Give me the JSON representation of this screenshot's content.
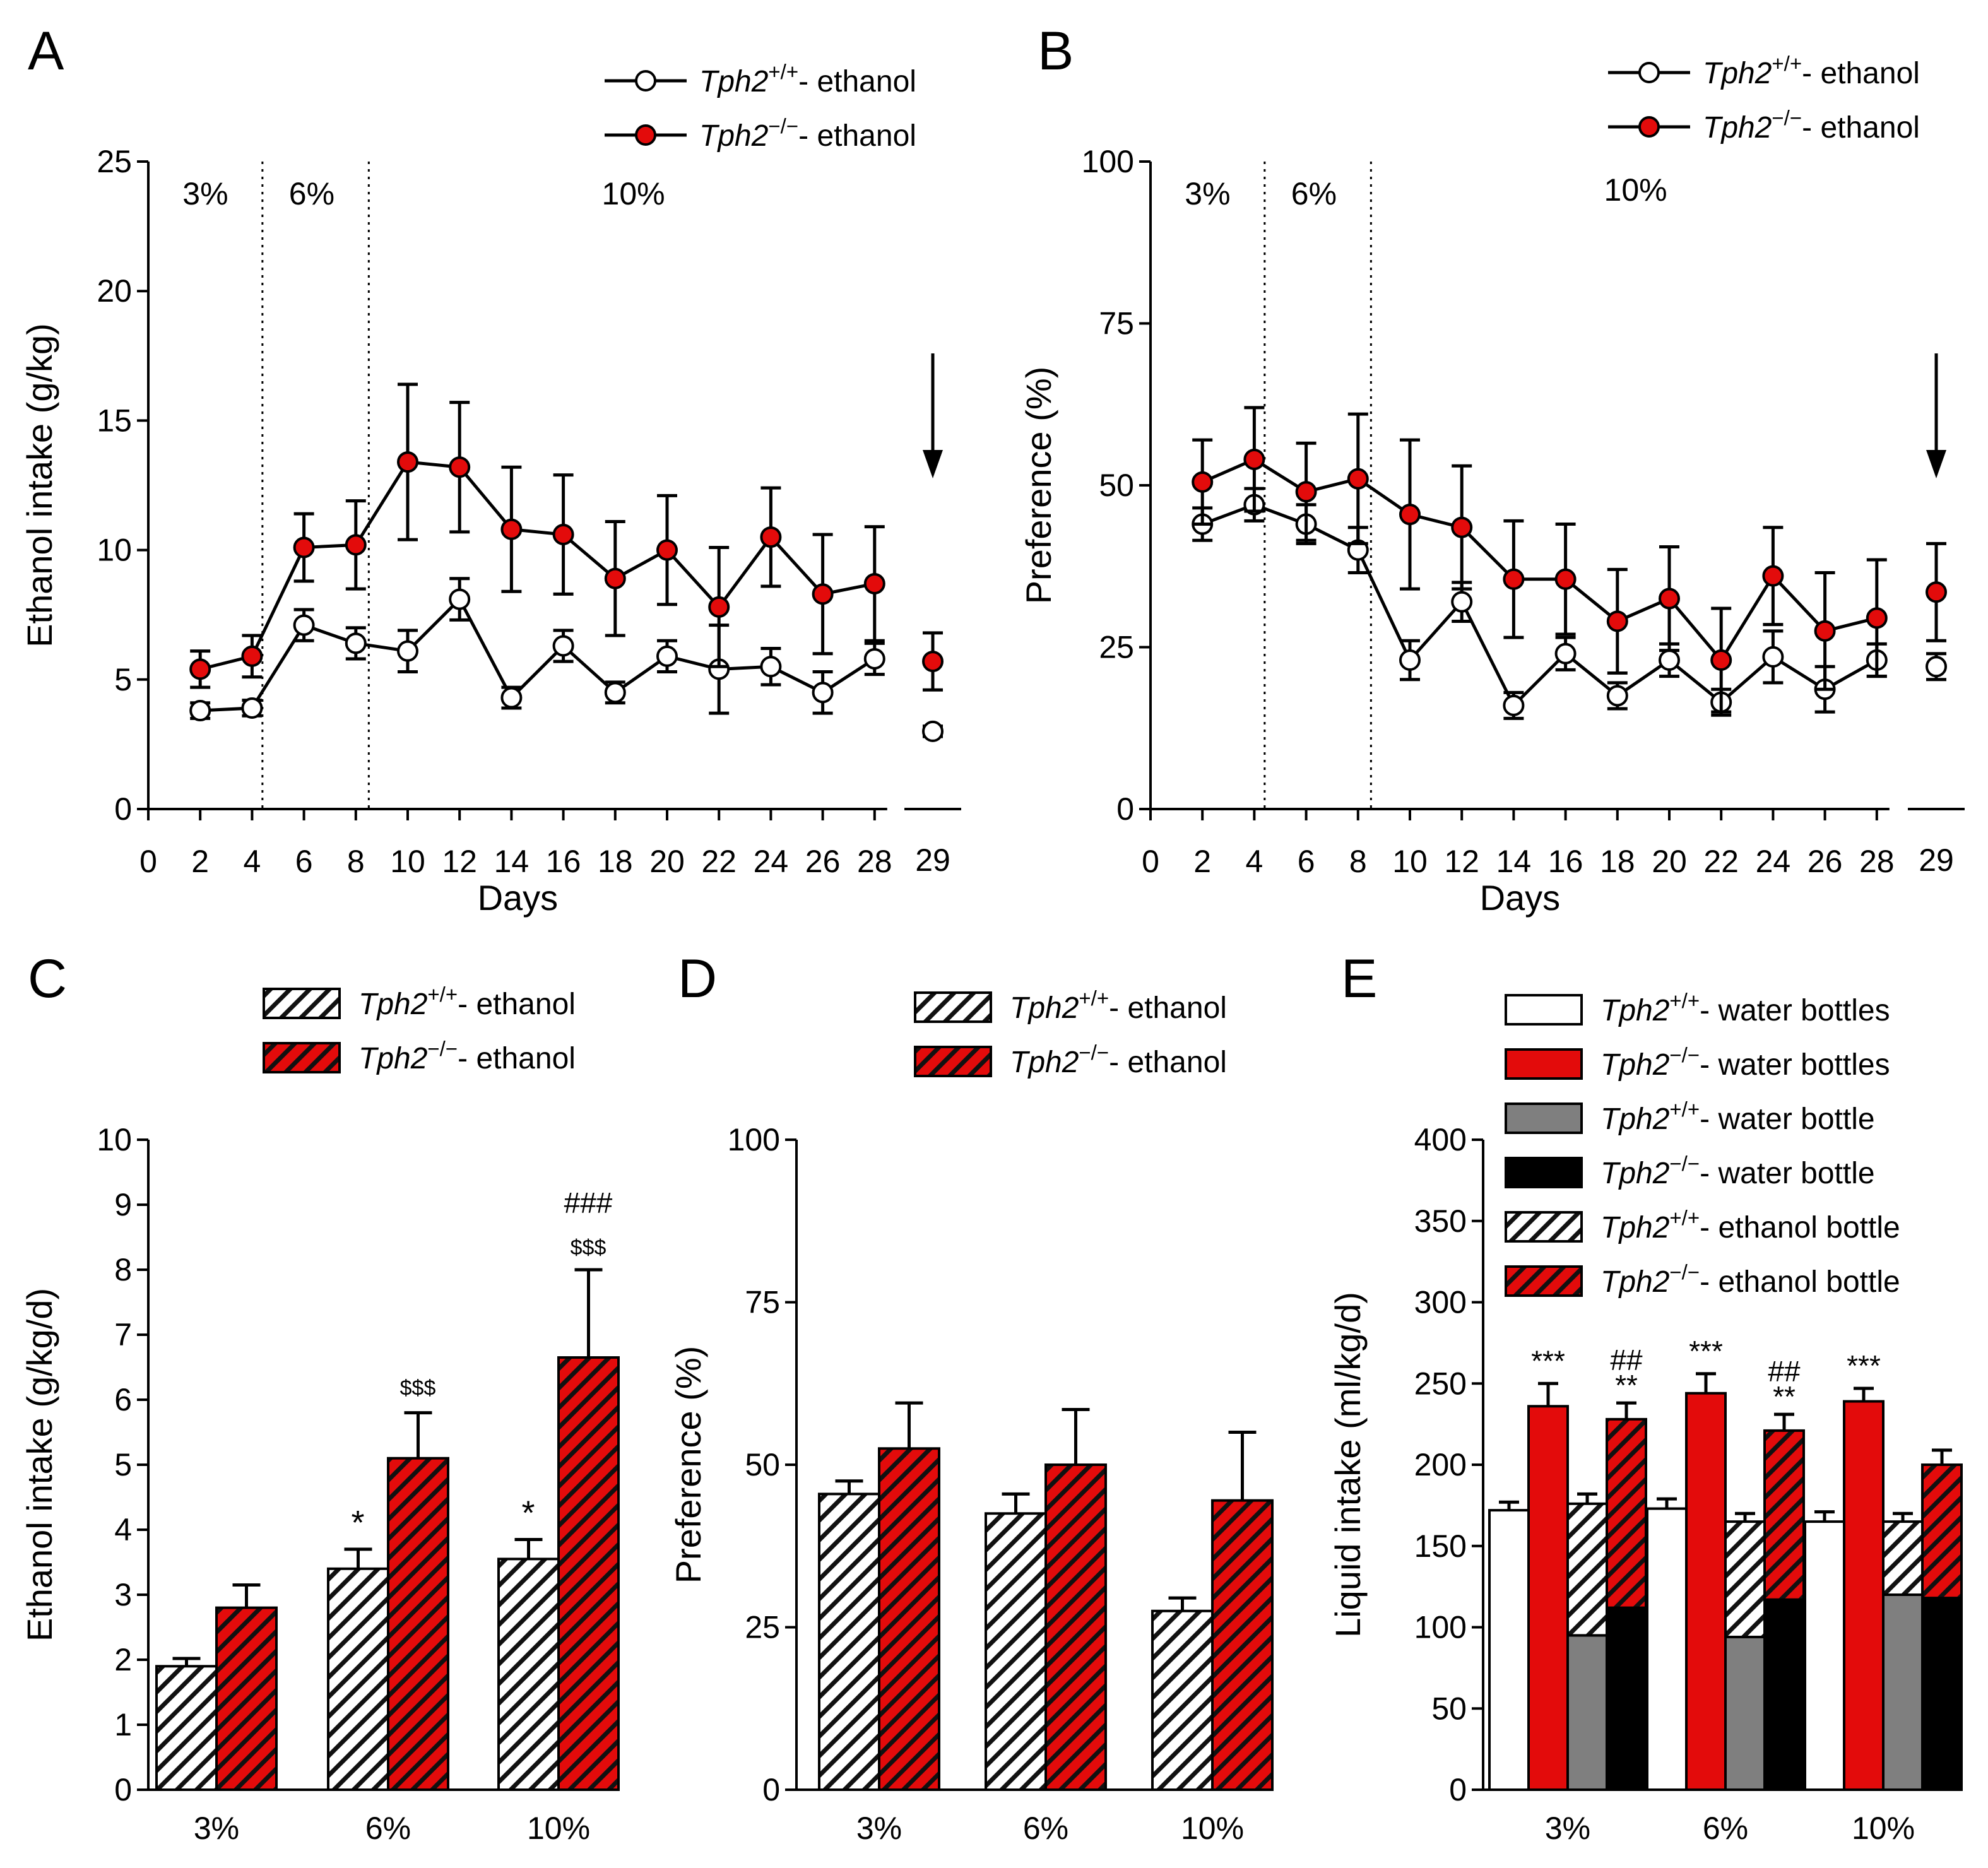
{
  "colors": {
    "ko": "#e30b0b",
    "wt": "#ffffff",
    "gray": "#7f7f7f",
    "black": "#000000"
  },
  "chart_data": [
    {
      "id": "A",
      "panel_label": "A",
      "type": "line",
      "xlabel": "Days",
      "ylabel": "Ethanol intake (g/kg)",
      "ylim": [
        0,
        25
      ],
      "yticks": [
        "0",
        "5",
        "10",
        "15",
        "20",
        "25"
      ],
      "xticks": [
        "0",
        "2",
        "4",
        "6",
        "8",
        "10",
        "12",
        "14",
        "16",
        "18",
        "20",
        "22",
        "24",
        "26",
        "28"
      ],
      "x_extra_tick": "29",
      "concentration_labels": [
        "3%",
        "6%",
        "10%"
      ],
      "series": [
        {
          "name": "Tph2+/+ - ethanol",
          "legend_italic": "Tph2",
          "legend_sup": "+/+",
          "legend_rest": "- ethanol",
          "fill": "wt",
          "x": [
            2,
            4,
            6,
            8,
            10,
            12,
            14,
            16,
            18,
            20,
            22,
            24,
            26,
            28
          ],
          "values": [
            3.8,
            3.9,
            7.1,
            6.4,
            6.1,
            8.1,
            4.3,
            6.3,
            4.5,
            5.9,
            5.4,
            5.5,
            4.5,
            5.8
          ],
          "err": [
            0.3,
            0.3,
            0.6,
            0.6,
            0.8,
            0.8,
            0.4,
            0.6,
            0.4,
            0.6,
            1.7,
            0.7,
            0.8,
            0.6
          ],
          "day29": 3.0,
          "day29_err": 0.2
        },
        {
          "name": "Tph2-/- - ethanol",
          "legend_italic": "Tph2",
          "legend_sup": "−/−",
          "legend_rest": "- ethanol",
          "fill": "ko",
          "x": [
            2,
            4,
            6,
            8,
            10,
            12,
            14,
            16,
            18,
            20,
            22,
            24,
            26,
            28
          ],
          "values": [
            5.4,
            5.9,
            10.1,
            10.2,
            13.4,
            13.2,
            10.8,
            10.6,
            8.9,
            10.0,
            7.8,
            10.5,
            8.3,
            8.7
          ],
          "err": [
            0.7,
            0.8,
            1.3,
            1.7,
            3.0,
            2.5,
            2.4,
            2.3,
            2.2,
            2.1,
            2.3,
            1.9,
            2.3,
            2.2
          ],
          "day29": 5.7,
          "day29_err": 1.1
        }
      ]
    },
    {
      "id": "B",
      "panel_label": "B",
      "type": "line",
      "xlabel": "Days",
      "ylabel": "Preference (%)",
      "ylim": [
        0,
        100
      ],
      "yticks": [
        "0",
        "25",
        "50",
        "75",
        "100"
      ],
      "xticks": [
        "0",
        "2",
        "4",
        "6",
        "8",
        "10",
        "12",
        "14",
        "16",
        "18",
        "20",
        "22",
        "24",
        "26",
        "28"
      ],
      "x_extra_tick": "29",
      "concentration_labels": [
        "3%",
        "6%",
        "10%"
      ],
      "series": [
        {
          "name": "Tph2+/+ - ethanol",
          "legend_italic": "Tph2",
          "legend_sup": "+/+",
          "legend_rest": "- ethanol",
          "fill": "wt",
          "x": [
            2,
            4,
            6,
            8,
            10,
            12,
            14,
            16,
            18,
            20,
            22,
            24,
            26,
            28
          ],
          "values": [
            44,
            47,
            44,
            40,
            23,
            32,
            16,
            24,
            17.5,
            23,
            16.5,
            23.5,
            18.5,
            23
          ],
          "err": [
            2.5,
            2.5,
            3,
            3.5,
            3,
            3,
            2,
            2.5,
            2,
            2.5,
            2,
            4,
            3.5,
            2.5
          ],
          "day29": 22,
          "day29_err": 2
        },
        {
          "name": "Tph2-/- - ethanol",
          "legend_italic": "Tph2",
          "legend_sup": "−/−",
          "legend_rest": "- ethanol",
          "fill": "ko",
          "x": [
            2,
            4,
            6,
            8,
            10,
            12,
            14,
            16,
            18,
            20,
            22,
            24,
            26,
            28
          ],
          "values": [
            50.5,
            54,
            49,
            51,
            45.5,
            43.5,
            35.5,
            35.5,
            29,
            32.5,
            23,
            36,
            27.5,
            29.5
          ],
          "err": [
            6.5,
            8,
            7.5,
            10,
            11.5,
            9.5,
            9,
            8.5,
            8,
            8,
            8,
            7.5,
            9,
            9
          ],
          "day29": 33.5,
          "day29_err": 7.5
        }
      ]
    },
    {
      "id": "C",
      "panel_label": "C",
      "type": "bar",
      "ylabel": "Ethanol intake (g/kg/d)",
      "ylim": [
        0,
        10
      ],
      "yticks": [
        "0",
        "1",
        "2",
        "3",
        "4",
        "5",
        "6",
        "7",
        "8",
        "9",
        "10"
      ],
      "categories": [
        "3%",
        "6%",
        "10%"
      ],
      "series": [
        {
          "name": "Tph2+/+ - ethanol",
          "legend_italic": "Tph2",
          "legend_sup": "+/+",
          "legend_rest": "- ethanol",
          "pattern": "wt",
          "values": [
            1.9,
            3.4,
            3.55
          ],
          "err": [
            0.12,
            0.3,
            0.3
          ]
        },
        {
          "name": "Tph2-/- - ethanol",
          "legend_italic": "Tph2",
          "legend_sup": "−/−",
          "legend_rest": "- ethanol",
          "pattern": "ko",
          "values": [
            2.8,
            5.1,
            6.65
          ],
          "err": [
            0.35,
            0.7,
            1.35
          ]
        }
      ],
      "annotations": [
        "*",
        "*",
        "$$$",
        "$$$",
        "###"
      ]
    },
    {
      "id": "D",
      "panel_label": "D",
      "type": "bar",
      "ylabel": "Preference (%)",
      "ylim": [
        0,
        100
      ],
      "yticks": [
        "0",
        "25",
        "50",
        "75",
        "100"
      ],
      "categories": [
        "3%",
        "6%",
        "10%"
      ],
      "series": [
        {
          "name": "Tph2+/+ - ethanol",
          "legend_italic": "Tph2",
          "legend_sup": "+/+",
          "legend_rest": "- ethanol",
          "pattern": "wt",
          "values": [
            45.5,
            42.5,
            27.5
          ],
          "err": [
            2,
            3,
            2
          ]
        },
        {
          "name": "Tph2-/- - ethanol",
          "legend_italic": "Tph2",
          "legend_sup": "−/−",
          "legend_rest": "- ethanol",
          "pattern": "ko",
          "values": [
            52.5,
            50,
            44.5
          ],
          "err": [
            7,
            8.5,
            10.5
          ]
        }
      ]
    },
    {
      "id": "E",
      "panel_label": "E",
      "type": "bar",
      "ylabel": "Liquid intake (ml/kg/d)",
      "ylim": [
        0,
        400
      ],
      "yticks": [
        "0",
        "50",
        "100",
        "150",
        "200",
        "250",
        "300",
        "350",
        "400"
      ],
      "categories": [
        "3%",
        "6%",
        "10%"
      ],
      "legend": [
        {
          "italic": "Tph2",
          "sup": "+/+",
          "rest": "- water bottles",
          "fill": "wt"
        },
        {
          "italic": "Tph2",
          "sup": "−/−",
          "rest": "- water bottles",
          "fill": "ko"
        },
        {
          "italic": "Tph2",
          "sup": "+/+",
          "rest": "- water bottle",
          "fill": "gray"
        },
        {
          "italic": "Tph2",
          "sup": "−/−",
          "rest": "- water bottle",
          "fill": "black"
        },
        {
          "italic": "Tph2",
          "sup": "+/+",
          "rest": "- ethanol bottle",
          "fill": "wt-hatch"
        },
        {
          "italic": "Tph2",
          "sup": "−/−",
          "rest": "- ethanol bottle",
          "fill": "ko-hatch"
        }
      ],
      "water_only": {
        "wt": {
          "values": [
            172,
            173,
            165
          ],
          "err": [
            5,
            6,
            6
          ]
        },
        "ko": {
          "values": [
            236,
            244,
            239
          ],
          "err": [
            14,
            12,
            8
          ]
        }
      },
      "two_bottle": {
        "wt_water": [
          95,
          94,
          120
        ],
        "wt_total": [
          176,
          165,
          165
        ],
        "wt_err": [
          6,
          5,
          5
        ],
        "ko_water": [
          112,
          117,
          118
        ],
        "ko_total": [
          228,
          221,
          200
        ],
        "ko_err": [
          10,
          10,
          9
        ]
      },
      "annotations": [
        "***",
        "***",
        "***",
        "**",
        "**",
        "##",
        "##"
      ]
    }
  ]
}
